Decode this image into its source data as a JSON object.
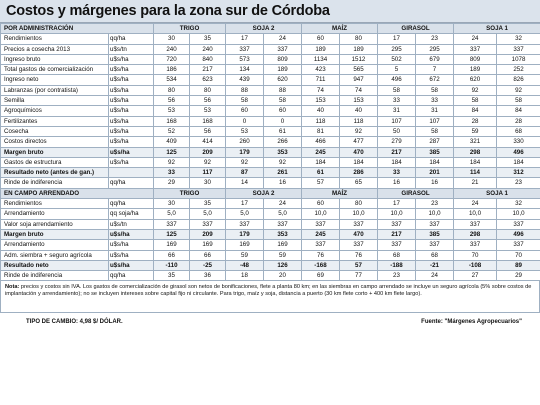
{
  "title": "Costos y márgenes para la zona sur de Córdoba",
  "sections": [
    {
      "header": "POR ADMINISTRACIÓN",
      "crops": [
        "TRIGO",
        "SOJA 2",
        "MAÍZ",
        "GIRASOL",
        "SOJA 1"
      ],
      "rows": [
        {
          "label": "Rendimientos",
          "unit": "qq/ha",
          "values": [
            "30",
            "35",
            "17",
            "24",
            "60",
            "80",
            "17",
            "23",
            "24",
            "32"
          ],
          "style": ""
        },
        {
          "label": "Precios a cosecha 2013",
          "unit": "u$s/tn",
          "values": [
            "240",
            "240",
            "337",
            "337",
            "189",
            "189",
            "295",
            "295",
            "337",
            "337"
          ],
          "style": ""
        },
        {
          "label": "Ingreso bruto",
          "unit": "u$s/ha",
          "values": [
            "720",
            "840",
            "573",
            "809",
            "1134",
            "1512",
            "502",
            "679",
            "809",
            "1078"
          ],
          "style": ""
        },
        {
          "label": "Total gastos de comercialización",
          "unit": "u$s/ha",
          "values": [
            "186",
            "217",
            "134",
            "189",
            "423",
            "565",
            "5",
            "7",
            "189",
            "252"
          ],
          "style": ""
        },
        {
          "label": "Ingreso neto",
          "unit": "u$s/ha",
          "values": [
            "534",
            "623",
            "439",
            "620",
            "711",
            "947",
            "496",
            "672",
            "620",
            "826"
          ],
          "style": ""
        },
        {
          "label": "Labranzas (por contratista)",
          "unit": "u$s/ha",
          "values": [
            "80",
            "80",
            "88",
            "88",
            "74",
            "74",
            "58",
            "58",
            "92",
            "92"
          ],
          "style": ""
        },
        {
          "label": "Semilla",
          "unit": "u$s/ha",
          "values": [
            "56",
            "56",
            "58",
            "58",
            "153",
            "153",
            "33",
            "33",
            "58",
            "58"
          ],
          "style": ""
        },
        {
          "label": "Agroquímicos",
          "unit": "u$s/ha",
          "values": [
            "53",
            "53",
            "60",
            "60",
            "40",
            "40",
            "31",
            "31",
            "84",
            "84"
          ],
          "style": ""
        },
        {
          "label": "Fertilizantes",
          "unit": "u$s/ha",
          "values": [
            "168",
            "168",
            "0",
            "0",
            "118",
            "118",
            "107",
            "107",
            "28",
            "28"
          ],
          "style": ""
        },
        {
          "label": "Cosecha",
          "unit": "u$s/ha",
          "values": [
            "52",
            "56",
            "53",
            "61",
            "81",
            "92",
            "50",
            "58",
            "59",
            "68"
          ],
          "style": ""
        },
        {
          "label": "Costos directos",
          "unit": "u$s/ha",
          "values": [
            "409",
            "414",
            "260",
            "266",
            "466",
            "477",
            "279",
            "287",
            "321",
            "330"
          ],
          "style": ""
        },
        {
          "label": "Margen bruto",
          "unit": "u$s/ha",
          "values": [
            "125",
            "209",
            "179",
            "353",
            "245",
            "470",
            "217",
            "385",
            "298",
            "496"
          ],
          "style": "bold"
        },
        {
          "label": "Gastos de estructura",
          "unit": "u$s/ha",
          "values": [
            "92",
            "92",
            "92",
            "92",
            "184",
            "184",
            "184",
            "184",
            "184",
            "184"
          ],
          "style": ""
        },
        {
          "label": "Resultado neto (antes de gan.)",
          "unit": "",
          "values": [
            "33",
            "117",
            "87",
            "261",
            "61",
            "286",
            "33",
            "201",
            "114",
            "312"
          ],
          "style": "bold"
        },
        {
          "label": "Rinde de indiferencia",
          "unit": "qq/ha",
          "values": [
            "29",
            "30",
            "14",
            "16",
            "57",
            "65",
            "16",
            "16",
            "21",
            "23"
          ],
          "style": ""
        }
      ]
    },
    {
      "header": "EN CAMPO ARRENDADO",
      "crops": [
        "TRIGO",
        "SOJA 2",
        "MAÍZ",
        "GIRASOL",
        "SOJA 1"
      ],
      "rows": [
        {
          "label": "Rendimientos",
          "unit": "qq/ha",
          "values": [
            "30",
            "35",
            "17",
            "24",
            "60",
            "80",
            "17",
            "23",
            "24",
            "32"
          ],
          "style": ""
        },
        {
          "label": "Arrendamiento",
          "unit": "qq soja/ha",
          "values": [
            "5,0",
            "5,0",
            "5,0",
            "5,0",
            "10,0",
            "10,0",
            "10,0",
            "10,0",
            "10,0",
            "10,0"
          ],
          "style": ""
        },
        {
          "label": "Valor soja arrendamiento",
          "unit": "u$s/tn",
          "values": [
            "337",
            "337",
            "337",
            "337",
            "337",
            "337",
            "337",
            "337",
            "337",
            "337"
          ],
          "style": ""
        },
        {
          "label": "Margen bruto",
          "unit": "u$s/ha",
          "values": [
            "125",
            "209",
            "179",
            "353",
            "245",
            "470",
            "217",
            "385",
            "298",
            "496"
          ],
          "style": "bold"
        },
        {
          "label": "Arrendamiento",
          "unit": "u$s/ha",
          "values": [
            "169",
            "169",
            "169",
            "169",
            "337",
            "337",
            "337",
            "337",
            "337",
            "337"
          ],
          "style": ""
        },
        {
          "label": "Adm. siembra + seguro agrícola",
          "unit": "u$s/ha",
          "values": [
            "66",
            "66",
            "59",
            "59",
            "76",
            "76",
            "68",
            "68",
            "70",
            "70"
          ],
          "style": ""
        },
        {
          "label": "Resultado neto",
          "unit": "u$s/ha",
          "values": [
            "-110",
            "-25",
            "-48",
            "126",
            "-168",
            "57",
            "-188",
            "-21",
            "-108",
            "89"
          ],
          "style": "bold"
        },
        {
          "label": "Rinde de indiferencia",
          "unit": "qq/ha",
          "values": [
            "35",
            "36",
            "18",
            "20",
            "69",
            "77",
            "23",
            "24",
            "27",
            "29"
          ],
          "style": ""
        }
      ]
    }
  ],
  "note_lead": "Nota:",
  "note": "precios y costos sin IVA. Los gastos de comercialización de girasol son netos de bonificaciones, flete a planta 80 km; en las siembras en campo arrendado se incluye un seguro agrícola (5% sobre costos de implantación y arrendamiento); no se incluyen intereses sobre capital fijo ni circulante. Para trigo, maíz y soja, distancia a puerto (30 km flete corto + 400 km flete largo).",
  "exchange_rate": "TIPO DE CAMBIO: 4,98 $/ DÓLAR.",
  "source": "Fuente: \"Márgenes Agropecuarios\""
}
